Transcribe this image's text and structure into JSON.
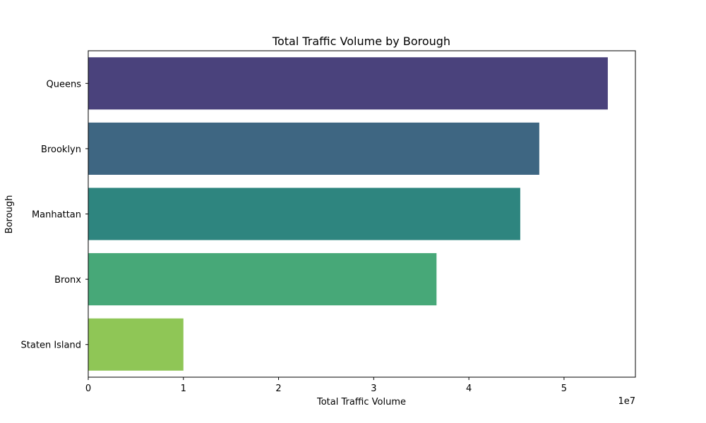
{
  "chart_data": {
    "type": "bar",
    "orientation": "horizontal",
    "title": "Total Traffic Volume by Borough",
    "xlabel": "Total Traffic Volume",
    "ylabel": "Borough",
    "x_scale_label": "1e7",
    "xlim": [
      0,
      57500000
    ],
    "x_ticks": [
      0,
      1,
      2,
      3,
      4,
      5
    ],
    "grid": false,
    "categories": [
      "Queens",
      "Brooklyn",
      "Manhattan",
      "Bronx",
      "Staten Island"
    ],
    "values": [
      54600000,
      47400000,
      45400000,
      36600000,
      10000000
    ],
    "colors": [
      "#4a427c",
      "#3e6682",
      "#2e857f",
      "#47a878",
      "#8fc656"
    ]
  }
}
